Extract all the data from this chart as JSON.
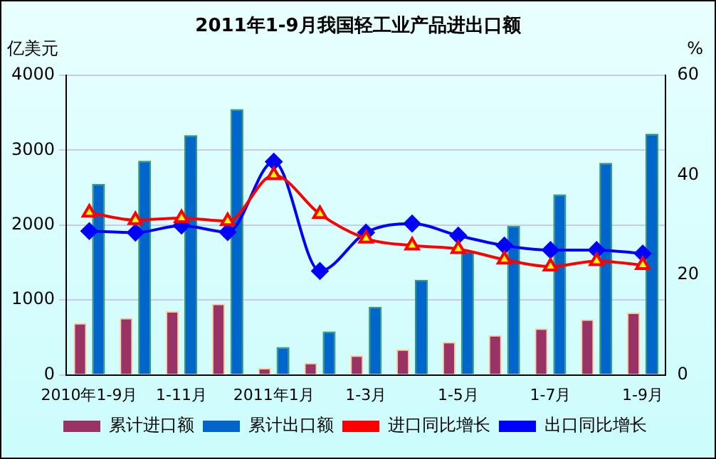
{
  "chart_data": {
    "type": "bar",
    "title": "2011年1-9月我国轻工业产品进出口额",
    "ylabel": "亿美元",
    "y2label": "%",
    "categories": [
      "2010年1-9月",
      null,
      "1-11月",
      null,
      "2011年1月",
      null,
      "1-3月",
      null,
      "1-5月",
      null,
      "1-7月",
      null,
      "1-9月"
    ],
    "series": [
      {
        "name": "累计进口额",
        "color": "#993366",
        "values": [
          690,
          760,
          850,
          950,
          90,
          160,
          260,
          340,
          440,
          530,
          620,
          740,
          830
        ]
      },
      {
        "name": "累计出口额",
        "color": "#0066cc",
        "values": [
          2550,
          2860,
          3200,
          3550,
          370,
          580,
          910,
          1270,
          1650,
          1990,
          2410,
          2830,
          3220
        ]
      },
      {
        "name": "进口同比增长",
        "type": "line",
        "axis": "y2",
        "color": "#ff0000",
        "marker": "triangle",
        "values": [
          32.5,
          31.0,
          31.4,
          30.8,
          40.0,
          32.2,
          27.3,
          25.9,
          25.2,
          23.1,
          21.7,
          22.8,
          22.0
        ]
      },
      {
        "name": "出口同比增长",
        "type": "line",
        "axis": "y2",
        "color": "#0000ff",
        "marker": "diamond",
        "values": [
          28.8,
          28.5,
          29.9,
          28.6,
          42.7,
          20.8,
          28.5,
          30.3,
          27.9,
          25.9,
          25.0,
          25.0,
          24.3
        ]
      }
    ],
    "ylim": [
      0,
      4000
    ],
    "yticks": [
      0,
      1000,
      2000,
      3000,
      4000
    ],
    "y2lim": [
      0,
      60
    ],
    "y2ticks": [
      0,
      20,
      40,
      60
    ],
    "grid": "y",
    "legend": "bottom"
  }
}
